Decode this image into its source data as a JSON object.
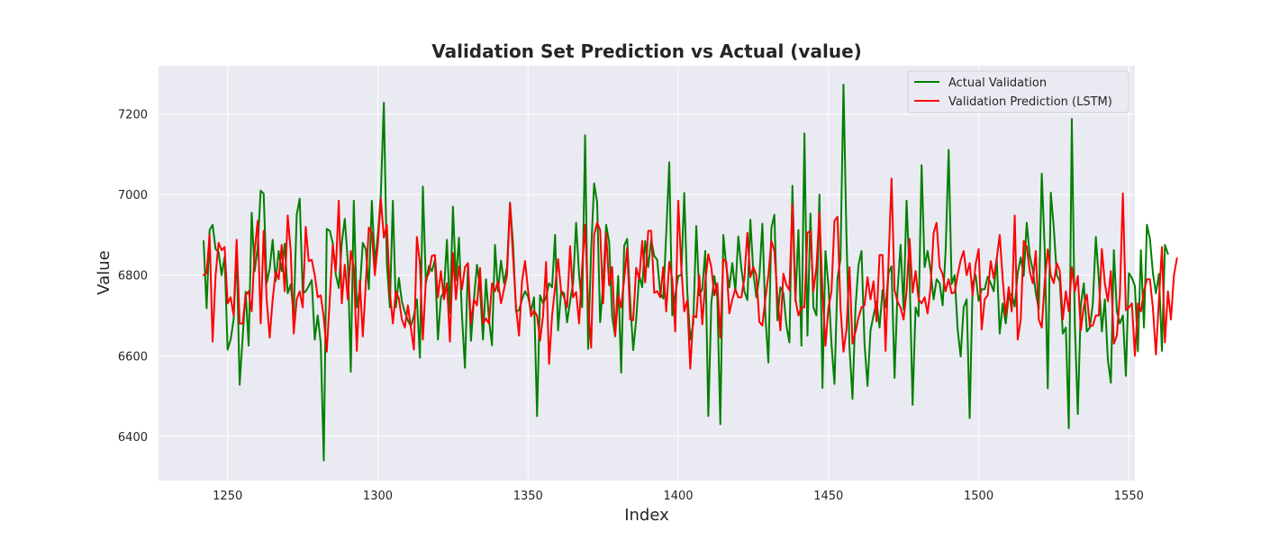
{
  "chart_data": {
    "type": "line",
    "title": "Validation Set Prediction vs Actual (value)",
    "xlabel": "Index",
    "ylabel": "Value",
    "xlim": [
      1227,
      1552
    ],
    "ylim": [
      6290,
      7320
    ],
    "xticks": [
      1250,
      1300,
      1350,
      1400,
      1450,
      1500,
      1550
    ],
    "yticks": [
      6400,
      6600,
      6800,
      7000,
      7200
    ],
    "grid": true,
    "legend_position": "top-right",
    "x_start": 1242,
    "series": [
      {
        "name": "Actual Validation",
        "color": "#008000",
        "values": [
          6885,
          6718,
          6912,
          6925,
          6865,
          6857,
          6800,
          6845,
          6615,
          6640,
          6690,
          6862,
          6528,
          6645,
          6759,
          6625,
          6955,
          6810,
          6868,
          7010,
          7002,
          6780,
          6816,
          6888,
          6785,
          6860,
          6810,
          6878,
          6755,
          6777,
          6700,
          6950,
          6990,
          6755,
          6760,
          6773,
          6788,
          6640,
          6700,
          6630,
          6340,
          6915,
          6910,
          6880,
          6802,
          6768,
          6880,
          6940,
          6835,
          6560,
          6985,
          6720,
          6765,
          6880,
          6865,
          6765,
          6985,
          6828,
          6900,
          7000,
          7228,
          6828,
          6720,
          6985,
          6720,
          6793,
          6735,
          6708,
          6688,
          6673,
          6700,
          6740,
          6595,
          7020,
          6780,
          6823,
          6810,
          6838,
          6640,
          6745,
          6758,
          6888,
          6705,
          6970,
          6787,
          6893,
          6700,
          6570,
          6827,
          6637,
          6740,
          6826,
          6770,
          6640,
          6790,
          6690,
          6626,
          6875,
          6760,
          6836,
          6780,
          6820,
          6980,
          6878,
          6710,
          6713,
          6740,
          6760,
          6747,
          6710,
          6745,
          6450,
          6750,
          6730,
          6745,
          6780,
          6770,
          6900,
          6663,
          6760,
          6755,
          6683,
          6735,
          6780,
          6930,
          6800,
          6720,
          7147,
          6617,
          6860,
          7028,
          6980,
          6683,
          6780,
          6925,
          6882,
          6698,
          6648,
          6798,
          6558,
          6873,
          6890,
          6735,
          6614,
          6690,
          6800,
          6770,
          6885,
          6820,
          6888,
          6848,
          6838,
          6755,
          6742,
          6903,
          7080,
          6700,
          6752,
          6798,
          6800,
          7004,
          6760,
          6640,
          6680,
          6922,
          6750,
          6765,
          6860,
          6450,
          6730,
          6798,
          6744,
          6430,
          6900,
          6820,
          6770,
          6830,
          6760,
          6896,
          6817,
          6760,
          6738,
          6938,
          6805,
          6745,
          6796,
          6928,
          6700,
          6583,
          6917,
          6950,
          6688,
          6770,
          6755,
          6675,
          6633,
          7022,
          6735,
          6912,
          6625,
          7152,
          6650,
          6953,
          6720,
          6700,
          7000,
          6520,
          6860,
          6773,
          6630,
          6530,
          6792,
          6840,
          7273,
          6893,
          6620,
          6493,
          6720,
          6825,
          6860,
          6630,
          6525,
          6663,
          6700,
          6735,
          6670,
          6763,
          6720,
          6805,
          6822,
          6545,
          6762,
          6875,
          6715,
          6985,
          6800,
          6478,
          6720,
          6698,
          7073,
          6820,
          6860,
          6810,
          6740,
          6790,
          6780,
          6725,
          6860,
          7111,
          6778,
          6800,
          6665,
          6598,
          6720,
          6740,
          6445,
          6780,
          6800,
          6736,
          6765,
          6765,
          6796,
          6780,
          6760,
          6843,
          6655,
          6730,
          6680,
          6750,
          6753,
          6722,
          6806,
          6844,
          6798,
          6930,
          6848,
          6814,
          6756,
          6715,
          7052,
          6860,
          6519,
          7005,
          6918,
          6800,
          6785,
          6655,
          6670,
          6420,
          7188,
          6680,
          6455,
          6725,
          6780,
          6660,
          6670,
          6730,
          6895,
          6788,
          6660,
          6740,
          6590,
          6533,
          6862,
          6710,
          6680,
          6700,
          6550,
          6805,
          6793,
          6773,
          6611,
          6862,
          6670,
          6925,
          6890,
          6805,
          6755,
          6803,
          6612,
          6875,
          6853
        ]
      },
      {
        "name": "Validation Prediction (LSTM)",
        "color": "#ff0000",
        "values": [
          6800,
          6805,
          6900,
          6635,
          6800,
          6880,
          6862,
          6870,
          6730,
          6745,
          6700,
          6888,
          6680,
          6680,
          6750,
          6760,
          6710,
          6860,
          6935,
          6680,
          6910,
          6740,
          6645,
          6740,
          6810,
          6790,
          6875,
          6760,
          6948,
          6860,
          6655,
          6740,
          6760,
          6720,
          6920,
          6835,
          6838,
          6800,
          6745,
          6750,
          6695,
          6610,
          6740,
          6875,
          6810,
          6985,
          6730,
          6826,
          6740,
          6860,
          6820,
          6612,
          6787,
          6648,
          6780,
          6918,
          6905,
          6800,
          6876,
          6990,
          6893,
          6925,
          6760,
          6680,
          6760,
          6742,
          6690,
          6670,
          6725,
          6670,
          6615,
          6895,
          6830,
          6640,
          6790,
          6805,
          6848,
          6850,
          6745,
          6810,
          6740,
          6780,
          6635,
          6855,
          6740,
          6822,
          6765,
          6820,
          6830,
          6680,
          6740,
          6725,
          6818,
          6680,
          6692,
          6680,
          6780,
          6760,
          6785,
          6730,
          6765,
          6800,
          6978,
          6847,
          6720,
          6650,
          6785,
          6835,
          6763,
          6698,
          6712,
          6700,
          6638,
          6700,
          6833,
          6580,
          6700,
          6770,
          6840,
          6760,
          6745,
          6720,
          6872,
          6745,
          6758,
          6680,
          6820,
          6925,
          6725,
          6620,
          6900,
          6930,
          6912,
          6730,
          6905,
          6775,
          6820,
          6650,
          6750,
          6720,
          6790,
          6868,
          6690,
          6688,
          6818,
          6790,
          6885,
          6782,
          6910,
          6910,
          6756,
          6760,
          6745,
          6820,
          6710,
          6833,
          6790,
          6660,
          6985,
          6820,
          6710,
          6738,
          6568,
          6700,
          6695,
          6800,
          6678,
          6784,
          6852,
          6820,
          6750,
          6780,
          6645,
          6840,
          6833,
          6705,
          6740,
          6765,
          6745,
          6745,
          6792,
          6905,
          6795,
          6820,
          6800,
          6684,
          6675,
          6742,
          6800,
          6885,
          6860,
          6748,
          6663,
          6804,
          6775,
          6763,
          6975,
          6740,
          6700,
          6720,
          6720,
          6905,
          6910,
          6760,
          6820,
          6955,
          6760,
          6625,
          6720,
          6760,
          6935,
          6945,
          6720,
          6610,
          6665,
          6820,
          6630,
          6660,
          6695,
          6720,
          6725,
          6795,
          6740,
          6785,
          6685,
          6850,
          6850,
          6612,
          6835,
          7040,
          6763,
          6734,
          6720,
          6690,
          6760,
          6890,
          6757,
          6810,
          6740,
          6730,
          6745,
          6705,
          6770,
          6905,
          6930,
          6820,
          6802,
          6760,
          6790,
          6755,
          6757,
          6800,
          6837,
          6860,
          6800,
          6830,
          6750,
          6828,
          6865,
          6665,
          6740,
          6750,
          6835,
          6792,
          6840,
          6900,
          6790,
          6700,
          6770,
          6710,
          6948,
          6640,
          6690,
          6885,
          6870,
          6810,
          6780,
          6860,
          6690,
          6670,
          6785,
          6864,
          6800,
          6780,
          6830,
          6810,
          6690,
          6760,
          6710,
          6820,
          6760,
          6798,
          6663,
          6722,
          6752,
          6673,
          6675,
          6700,
          6700,
          6865,
          6780,
          6735,
          6810,
          6630,
          6650,
          6750,
          7003,
          6713,
          6720,
          6730,
          6600,
          6730,
          6710,
          6760,
          6790,
          6790,
          6718,
          6603,
          6738,
          6870,
          6633,
          6760,
          6690,
          6800,
          6842
        ]
      }
    ]
  }
}
